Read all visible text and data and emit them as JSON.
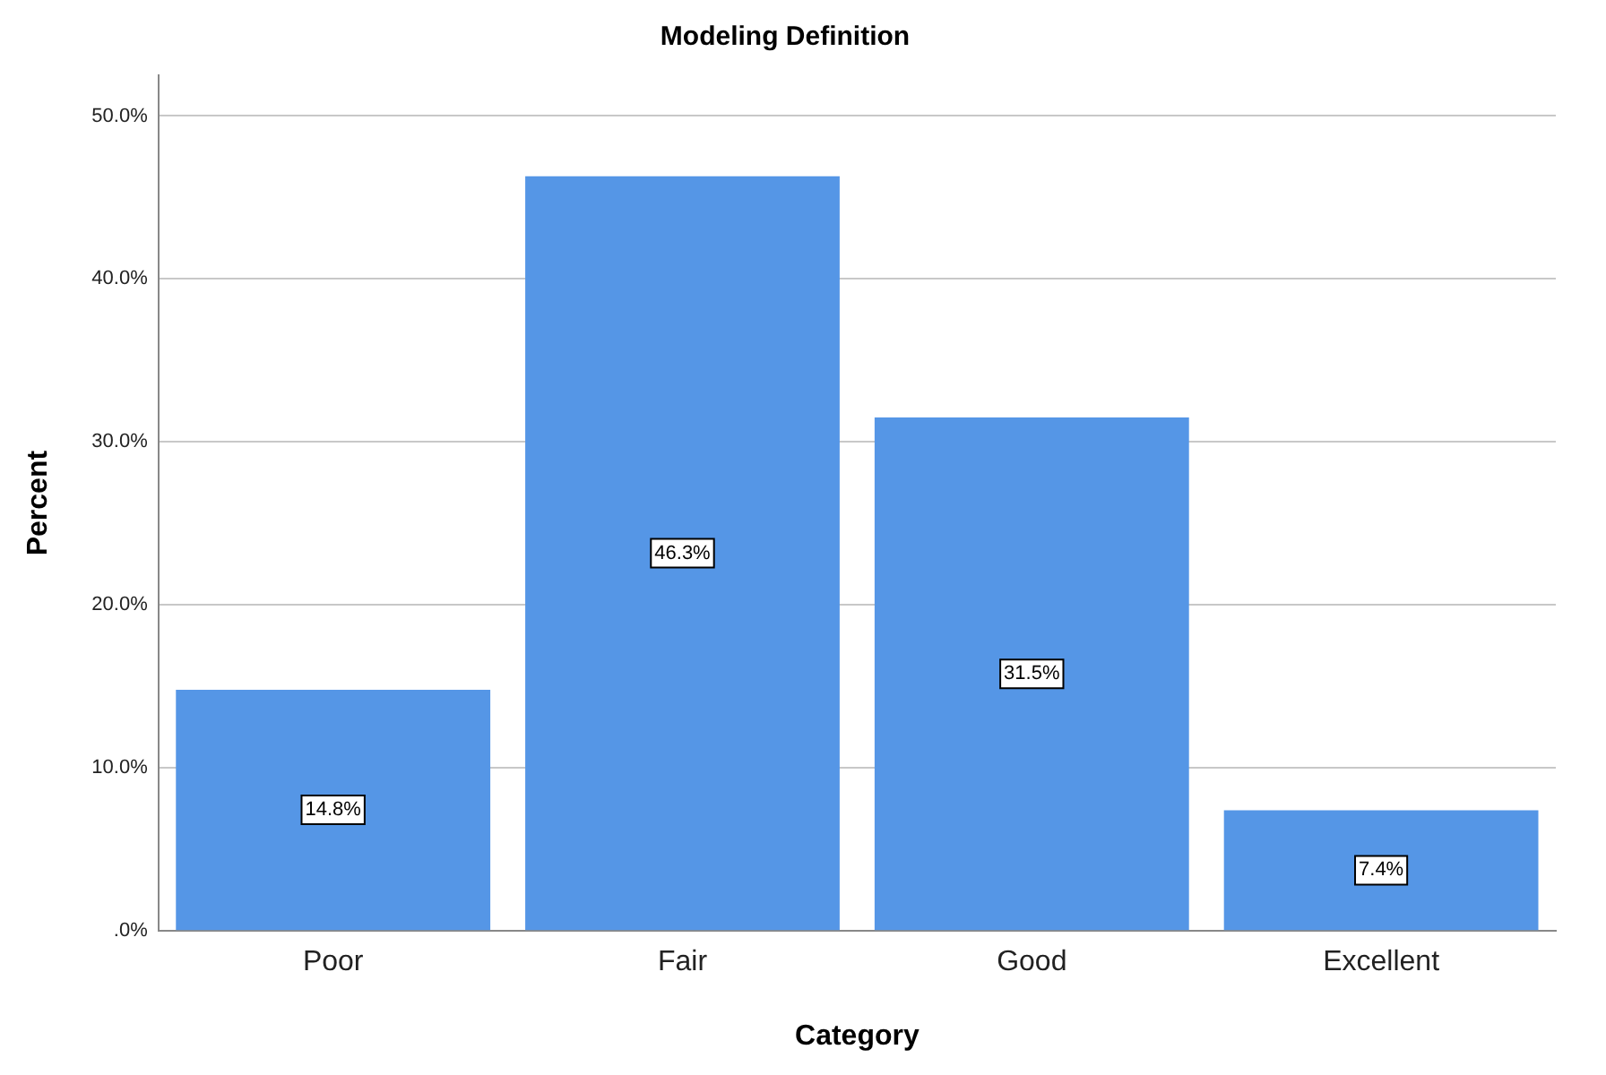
{
  "chart_data": {
    "type": "bar",
    "title": "Modeling Definition",
    "xlabel": "Category",
    "ylabel": "Percent",
    "categories": [
      "Poor",
      "Fair",
      "Good",
      "Excellent"
    ],
    "values": [
      14.8,
      46.3,
      31.5,
      7.4
    ],
    "value_labels": [
      "14.8%",
      "46.3%",
      "31.5%",
      "7.4%"
    ],
    "color": "#5596e6",
    "ylim": [
      0,
      52.5
    ],
    "yticks": [
      {
        "value": 0,
        "label": ".0%"
      },
      {
        "value": 10,
        "label": "10.0%"
      },
      {
        "value": 20,
        "label": "20.0%"
      },
      {
        "value": 30,
        "label": "30.0%"
      },
      {
        "value": 40,
        "label": "40.0%"
      },
      {
        "value": 50,
        "label": "50.0%"
      }
    ],
    "grid": "y",
    "legend": false
  }
}
